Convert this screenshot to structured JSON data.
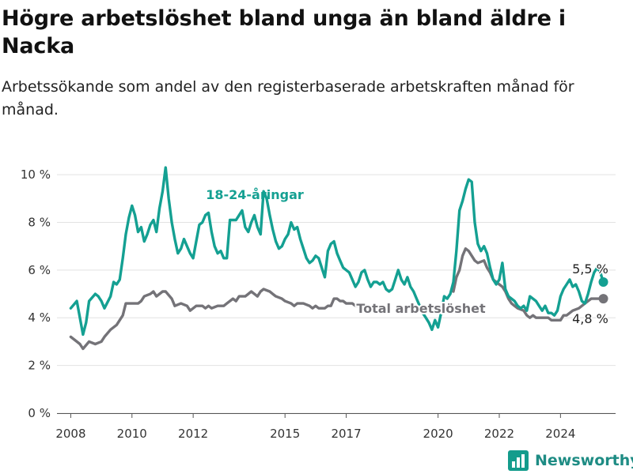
{
  "header": {
    "title": "Högre arbetslöshet bland unga än bland äldre i Nacka",
    "subtitle": "Arbetssökande som andel av den registerbaserade arbetskraften månad för månad."
  },
  "brand": {
    "name": "Newsworthy",
    "icon": "bar-chart-logo-icon"
  },
  "colors": {
    "young": "#14a092",
    "total": "#747378",
    "grid": "#e2e2e2"
  },
  "chart_data": {
    "type": "line",
    "ylim": [
      0,
      10.6
    ],
    "yticks": [
      0,
      2,
      4,
      6,
      8,
      10
    ],
    "ytick_labels": [
      "0 %",
      "2 %",
      "4 %",
      "6 %",
      "8 %",
      "10 %"
    ],
    "xlim": [
      2007.55,
      2025.8
    ],
    "xticks": [
      2008,
      2010,
      2012,
      2015,
      2017,
      2020,
      2022,
      2024
    ],
    "xtick_labels": [
      "2008",
      "2010",
      "2012",
      "2015",
      "2017",
      "2020",
      "2022",
      "2024"
    ],
    "grid": true,
    "annotations": {
      "young_label": "18-24-åringar",
      "total_label": "Total arbetslöshet",
      "young_end_label": "5,5 %",
      "total_end_label": "4,8 %"
    },
    "series": [
      {
        "key": "young",
        "label": "18-24-åringar",
        "points": [
          [
            2008.0,
            4.4
          ],
          [
            2008.2,
            4.7
          ],
          [
            2008.4,
            3.3
          ],
          [
            2008.5,
            3.8
          ],
          [
            2008.6,
            4.7
          ],
          [
            2008.8,
            5.0
          ],
          [
            2008.9,
            4.9
          ],
          [
            2009.0,
            4.7
          ],
          [
            2009.1,
            4.4
          ],
          [
            2009.3,
            4.9
          ],
          [
            2009.4,
            5.5
          ],
          [
            2009.5,
            5.4
          ],
          [
            2009.6,
            5.6
          ],
          [
            2009.7,
            6.5
          ],
          [
            2009.8,
            7.5
          ],
          [
            2009.9,
            8.2
          ],
          [
            2010.0,
            8.7
          ],
          [
            2010.1,
            8.3
          ],
          [
            2010.2,
            7.6
          ],
          [
            2010.3,
            7.8
          ],
          [
            2010.4,
            7.2
          ],
          [
            2010.5,
            7.5
          ],
          [
            2010.6,
            7.9
          ],
          [
            2010.7,
            8.1
          ],
          [
            2010.8,
            7.6
          ],
          [
            2010.9,
            8.6
          ],
          [
            2011.0,
            9.3
          ],
          [
            2011.1,
            10.3
          ],
          [
            2011.2,
            9.0
          ],
          [
            2011.3,
            8.0
          ],
          [
            2011.4,
            7.3
          ],
          [
            2011.5,
            6.7
          ],
          [
            2011.6,
            6.9
          ],
          [
            2011.7,
            7.3
          ],
          [
            2011.8,
            7.0
          ],
          [
            2011.9,
            6.7
          ],
          [
            2012.0,
            6.5
          ],
          [
            2012.1,
            7.2
          ],
          [
            2012.2,
            7.9
          ],
          [
            2012.3,
            8.0
          ],
          [
            2012.4,
            8.3
          ],
          [
            2012.5,
            8.4
          ],
          [
            2012.6,
            7.6
          ],
          [
            2012.7,
            7.0
          ],
          [
            2012.8,
            6.7
          ],
          [
            2012.9,
            6.8
          ],
          [
            2013.0,
            6.5
          ],
          [
            2013.1,
            6.5
          ],
          [
            2013.2,
            8.1
          ],
          [
            2013.3,
            8.1
          ],
          [
            2013.4,
            8.1
          ],
          [
            2013.5,
            8.3
          ],
          [
            2013.6,
            8.5
          ],
          [
            2013.7,
            7.8
          ],
          [
            2013.8,
            7.6
          ],
          [
            2013.9,
            8.0
          ],
          [
            2014.0,
            8.3
          ],
          [
            2014.1,
            7.8
          ],
          [
            2014.2,
            7.5
          ],
          [
            2014.3,
            9.3
          ],
          [
            2014.4,
            9.0
          ],
          [
            2014.5,
            8.3
          ],
          [
            2014.6,
            7.7
          ],
          [
            2014.7,
            7.2
          ],
          [
            2014.8,
            6.9
          ],
          [
            2014.9,
            7.0
          ],
          [
            2015.0,
            7.3
          ],
          [
            2015.1,
            7.5
          ],
          [
            2015.2,
            8.0
          ],
          [
            2015.3,
            7.7
          ],
          [
            2015.4,
            7.8
          ],
          [
            2015.5,
            7.3
          ],
          [
            2015.6,
            6.9
          ],
          [
            2015.7,
            6.5
          ],
          [
            2015.8,
            6.3
          ],
          [
            2015.9,
            6.4
          ],
          [
            2016.0,
            6.6
          ],
          [
            2016.1,
            6.5
          ],
          [
            2016.2,
            6.1
          ],
          [
            2016.3,
            5.7
          ],
          [
            2016.4,
            6.8
          ],
          [
            2016.5,
            7.1
          ],
          [
            2016.6,
            7.2
          ],
          [
            2016.7,
            6.7
          ],
          [
            2016.8,
            6.4
          ],
          [
            2016.9,
            6.1
          ],
          [
            2017.0,
            6.0
          ],
          [
            2017.1,
            5.9
          ],
          [
            2017.2,
            5.6
          ],
          [
            2017.3,
            5.3
          ],
          [
            2017.4,
            5.5
          ],
          [
            2017.5,
            5.9
          ],
          [
            2017.6,
            6.0
          ],
          [
            2017.7,
            5.6
          ],
          [
            2017.8,
            5.3
          ],
          [
            2017.9,
            5.5
          ],
          [
            2018.0,
            5.5
          ],
          [
            2018.1,
            5.4
          ],
          [
            2018.2,
            5.5
          ],
          [
            2018.3,
            5.2
          ],
          [
            2018.4,
            5.1
          ],
          [
            2018.5,
            5.2
          ],
          [
            2018.6,
            5.6
          ],
          [
            2018.7,
            6.0
          ],
          [
            2018.8,
            5.6
          ],
          [
            2018.9,
            5.4
          ],
          [
            2019.0,
            5.7
          ],
          [
            2019.1,
            5.3
          ],
          [
            2019.2,
            5.1
          ],
          [
            2019.3,
            4.8
          ],
          [
            2019.4,
            4.5
          ],
          [
            2019.5,
            4.2
          ],
          [
            2019.6,
            4.0
          ],
          [
            2019.7,
            3.8
          ],
          [
            2019.8,
            3.5
          ],
          [
            2019.9,
            3.9
          ],
          [
            2020.0,
            3.6
          ],
          [
            2020.1,
            4.2
          ],
          [
            2020.2,
            4.9
          ],
          [
            2020.3,
            4.8
          ],
          [
            2020.4,
            5.0
          ],
          [
            2020.5,
            5.5
          ],
          [
            2020.6,
            6.8
          ],
          [
            2020.7,
            8.5
          ],
          [
            2020.8,
            8.9
          ],
          [
            2020.9,
            9.4
          ],
          [
            2021.0,
            9.8
          ],
          [
            2021.1,
            9.7
          ],
          [
            2021.2,
            8.0
          ],
          [
            2021.3,
            7.1
          ],
          [
            2021.4,
            6.8
          ],
          [
            2021.5,
            7.0
          ],
          [
            2021.6,
            6.7
          ],
          [
            2021.7,
            6.1
          ],
          [
            2021.8,
            5.6
          ],
          [
            2021.9,
            5.4
          ],
          [
            2022.0,
            5.6
          ],
          [
            2022.1,
            6.3
          ],
          [
            2022.2,
            5.2
          ],
          [
            2022.3,
            4.9
          ],
          [
            2022.4,
            4.8
          ],
          [
            2022.5,
            4.7
          ],
          [
            2022.6,
            4.5
          ],
          [
            2022.7,
            4.4
          ],
          [
            2022.8,
            4.5
          ],
          [
            2022.9,
            4.3
          ],
          [
            2023.0,
            4.9
          ],
          [
            2023.1,
            4.8
          ],
          [
            2023.2,
            4.7
          ],
          [
            2023.3,
            4.5
          ],
          [
            2023.4,
            4.3
          ],
          [
            2023.5,
            4.5
          ],
          [
            2023.6,
            4.2
          ],
          [
            2023.7,
            4.2
          ],
          [
            2023.8,
            4.1
          ],
          [
            2023.9,
            4.3
          ],
          [
            2024.0,
            4.9
          ],
          [
            2024.1,
            5.2
          ],
          [
            2024.2,
            5.4
          ],
          [
            2024.3,
            5.6
          ],
          [
            2024.4,
            5.3
          ],
          [
            2024.5,
            5.4
          ],
          [
            2024.6,
            5.1
          ],
          [
            2024.7,
            4.7
          ],
          [
            2024.8,
            4.6
          ],
          [
            2024.9,
            5.0
          ],
          [
            2025.0,
            5.5
          ],
          [
            2025.1,
            5.9
          ],
          [
            2025.2,
            6.1
          ],
          [
            2025.3,
            5.9
          ],
          [
            2025.4,
            5.5
          ]
        ]
      },
      {
        "key": "total",
        "label": "Total arbetslöshet",
        "points": [
          [
            2008.0,
            3.2
          ],
          [
            2008.2,
            3.0
          ],
          [
            2008.3,
            2.9
          ],
          [
            2008.4,
            2.7
          ],
          [
            2008.6,
            3.0
          ],
          [
            2008.8,
            2.9
          ],
          [
            2009.0,
            3.0
          ],
          [
            2009.1,
            3.2
          ],
          [
            2009.3,
            3.5
          ],
          [
            2009.5,
            3.7
          ],
          [
            2009.7,
            4.1
          ],
          [
            2009.8,
            4.6
          ],
          [
            2010.0,
            4.6
          ],
          [
            2010.2,
            4.6
          ],
          [
            2010.3,
            4.7
          ],
          [
            2010.4,
            4.9
          ],
          [
            2010.6,
            5.0
          ],
          [
            2010.7,
            5.1
          ],
          [
            2010.8,
            4.9
          ],
          [
            2011.0,
            5.1
          ],
          [
            2011.1,
            5.1
          ],
          [
            2011.3,
            4.8
          ],
          [
            2011.4,
            4.5
          ],
          [
            2011.6,
            4.6
          ],
          [
            2011.8,
            4.5
          ],
          [
            2011.9,
            4.3
          ],
          [
            2012.1,
            4.5
          ],
          [
            2012.3,
            4.5
          ],
          [
            2012.4,
            4.4
          ],
          [
            2012.5,
            4.5
          ],
          [
            2012.6,
            4.4
          ],
          [
            2012.8,
            4.5
          ],
          [
            2013.0,
            4.5
          ],
          [
            2013.1,
            4.6
          ],
          [
            2013.3,
            4.8
          ],
          [
            2013.4,
            4.7
          ],
          [
            2013.5,
            4.9
          ],
          [
            2013.7,
            4.9
          ],
          [
            2013.8,
            5.0
          ],
          [
            2013.9,
            5.1
          ],
          [
            2014.0,
            5.0
          ],
          [
            2014.1,
            4.9
          ],
          [
            2014.2,
            5.1
          ],
          [
            2014.3,
            5.2
          ],
          [
            2014.5,
            5.1
          ],
          [
            2014.6,
            5.0
          ],
          [
            2014.7,
            4.9
          ],
          [
            2014.9,
            4.8
          ],
          [
            2015.0,
            4.7
          ],
          [
            2015.2,
            4.6
          ],
          [
            2015.3,
            4.5
          ],
          [
            2015.4,
            4.6
          ],
          [
            2015.6,
            4.6
          ],
          [
            2015.8,
            4.5
          ],
          [
            2015.9,
            4.4
          ],
          [
            2016.0,
            4.5
          ],
          [
            2016.1,
            4.4
          ],
          [
            2016.3,
            4.4
          ],
          [
            2016.4,
            4.5
          ],
          [
            2016.5,
            4.5
          ],
          [
            2016.6,
            4.8
          ],
          [
            2016.7,
            4.8
          ],
          [
            2016.8,
            4.7
          ],
          [
            2016.9,
            4.7
          ],
          [
            2017.0,
            4.6
          ],
          [
            2017.2,
            4.6
          ],
          [
            2017.3,
            4.5
          ],
          [
            2017.4,
            4.5
          ],
          [
            2017.6,
            4.4
          ],
          [
            2017.7,
            4.5
          ],
          [
            2017.8,
            4.4
          ],
          [
            2017.9,
            4.3
          ]
        ]
      },
      {
        "key": "total",
        "label": "Total arbetslöshet",
        "points": [
          [
            2020.5,
            5.1
          ],
          [
            2020.6,
            5.7
          ],
          [
            2020.7,
            6.0
          ],
          [
            2020.8,
            6.6
          ],
          [
            2020.9,
            6.9
          ],
          [
            2021.0,
            6.8
          ],
          [
            2021.1,
            6.6
          ],
          [
            2021.2,
            6.4
          ],
          [
            2021.3,
            6.3
          ],
          [
            2021.5,
            6.4
          ],
          [
            2021.6,
            6.1
          ],
          [
            2021.7,
            5.9
          ],
          [
            2021.8,
            5.6
          ],
          [
            2021.9,
            5.5
          ],
          [
            2022.0,
            5.4
          ],
          [
            2022.1,
            5.3
          ],
          [
            2022.2,
            5.1
          ],
          [
            2022.3,
            4.8
          ],
          [
            2022.4,
            4.6
          ],
          [
            2022.5,
            4.5
          ],
          [
            2022.6,
            4.4
          ],
          [
            2022.8,
            4.3
          ],
          [
            2022.9,
            4.1
          ],
          [
            2023.0,
            4.0
          ],
          [
            2023.1,
            4.1
          ],
          [
            2023.2,
            4.0
          ],
          [
            2023.4,
            4.0
          ],
          [
            2023.6,
            4.0
          ],
          [
            2023.7,
            3.9
          ],
          [
            2023.9,
            3.9
          ],
          [
            2024.0,
            3.9
          ],
          [
            2024.1,
            4.1
          ],
          [
            2024.2,
            4.1
          ],
          [
            2024.4,
            4.3
          ],
          [
            2024.6,
            4.4
          ],
          [
            2024.8,
            4.6
          ],
          [
            2025.0,
            4.8
          ],
          [
            2025.2,
            4.8
          ],
          [
            2025.4,
            4.8
          ]
        ]
      }
    ]
  }
}
